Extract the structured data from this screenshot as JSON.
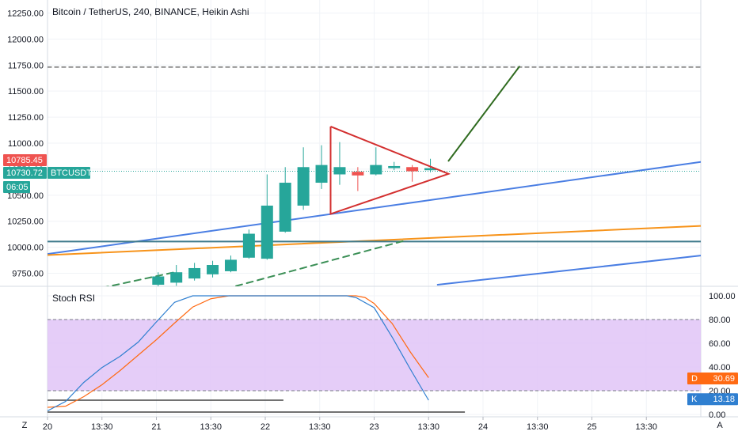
{
  "chart_data": {
    "type": "candlestick",
    "title": "Bitcoin / TetherUS, 240, BINANCE, Heikin Ashi",
    "price_axis": {
      "ticks": [
        9750,
        10000,
        10250,
        10500,
        10750,
        11000,
        11250,
        11500,
        11750,
        12000,
        12250
      ],
      "tick_labels": [
        "9750.00",
        "10000.00",
        "10250.00",
        "10500.00",
        "10750.00",
        "11000.00",
        "11250.00",
        "11500.00",
        "11750.00",
        "12000.00",
        "12250.00"
      ],
      "range": [
        9625,
        12375
      ]
    },
    "time_axis": {
      "labels": [
        "20",
        "13:30",
        "21",
        "13:30",
        "22",
        "13:30",
        "23",
        "13:30",
        "24",
        "13:30",
        "25",
        "13:30"
      ],
      "range": [
        0,
        36
      ]
    },
    "candles": [
      {
        "t": 6.1,
        "open": 9640,
        "close": 9720,
        "high": 9760,
        "low": 9610,
        "dir": "up"
      },
      {
        "t": 7.1,
        "open": 9660,
        "close": 9760,
        "high": 9830,
        "low": 9630,
        "dir": "up"
      },
      {
        "t": 8.1,
        "open": 9700,
        "close": 9800,
        "high": 9850,
        "low": 9680,
        "dir": "up"
      },
      {
        "t": 9.1,
        "open": 9740,
        "close": 9830,
        "high": 9870,
        "low": 9710,
        "dir": "up"
      },
      {
        "t": 10.1,
        "open": 9770,
        "close": 9880,
        "high": 9920,
        "low": 9760,
        "dir": "up"
      },
      {
        "t": 11.1,
        "open": 9900,
        "close": 10130,
        "high": 10170,
        "low": 9890,
        "dir": "up"
      },
      {
        "t": 12.1,
        "open": 9890,
        "close": 10400,
        "high": 10700,
        "low": 9880,
        "dir": "up"
      },
      {
        "t": 13.1,
        "open": 10150,
        "close": 10620,
        "high": 10770,
        "low": 10140,
        "dir": "up"
      },
      {
        "t": 14.1,
        "open": 10400,
        "close": 10770,
        "high": 10960,
        "low": 10360,
        "dir": "up"
      },
      {
        "t": 15.1,
        "open": 10620,
        "close": 10790,
        "high": 10980,
        "low": 10560,
        "dir": "up"
      },
      {
        "t": 16.1,
        "open": 10700,
        "close": 10770,
        "high": 11010,
        "low": 10600,
        "dir": "up"
      },
      {
        "t": 17.1,
        "open": 10725,
        "close": 10690,
        "high": 10770,
        "low": 10540,
        "dir": "down"
      },
      {
        "t": 18.1,
        "open": 10700,
        "close": 10790,
        "high": 10960,
        "low": 10690,
        "dir": "up"
      },
      {
        "t": 19.1,
        "open": 10760,
        "close": 10780,
        "high": 10820,
        "low": 10740,
        "dir": "up"
      },
      {
        "t": 20.1,
        "open": 10770,
        "close": 10730,
        "high": 10790,
        "low": 10630,
        "dir": "down"
      },
      {
        "t": 21.1,
        "open": 10740,
        "close": 10760,
        "high": 10850,
        "low": 10720,
        "dir": "up"
      }
    ],
    "price_labels": [
      {
        "text": "10785.45",
        "price": 10785.45,
        "color": "#ef5350"
      },
      {
        "text": "10730.72",
        "price": 10730.72,
        "color": "#26a69a"
      },
      {
        "text": "BTCUSDT",
        "price": 10730.72,
        "color": "#26a69a"
      },
      {
        "text": "06:05",
        "price": 10630,
        "color": "#26a69a"
      }
    ],
    "drawings": [
      {
        "kind": "line",
        "color": "#4a7ee3",
        "dashed": false,
        "from": [
          0,
          9935
        ],
        "to": [
          36,
          10820
        ]
      },
      {
        "kind": "line",
        "color": "#f7931a",
        "dashed": false,
        "from": [
          0,
          9925
        ],
        "to": [
          36,
          10205
        ]
      },
      {
        "kind": "line",
        "color": "#3f7a8c",
        "dashed": false,
        "from": [
          0,
          10055
        ],
        "to": [
          36,
          10055
        ]
      },
      {
        "kind": "line",
        "color": "#4a7ee3",
        "dashed": false,
        "from": [
          21.5,
          9640
        ],
        "to": [
          36,
          9920
        ]
      },
      {
        "kind": "line",
        "color": "#3b8f56",
        "dashed": true,
        "from": [
          3.0,
          9610
        ],
        "to": [
          7.0,
          9760
        ]
      },
      {
        "kind": "line",
        "color": "#3b8f56",
        "dashed": true,
        "from": [
          9.8,
          9600
        ],
        "to": [
          19.6,
          10060
        ]
      },
      {
        "kind": "line",
        "color": "#555555",
        "dashed": true,
        "from": [
          0,
          11730
        ],
        "to": [
          36,
          11730
        ]
      },
      {
        "kind": "line",
        "color": "#2f6b1f",
        "dashed": false,
        "from": [
          22.1,
          10830
        ],
        "to": [
          26.0,
          11735
        ]
      },
      {
        "kind": "polyline",
        "color": "#d32f2f",
        "dashed": false,
        "points": [
          [
            15.6,
            11160
          ],
          [
            22.1,
            10705
          ],
          [
            15.6,
            10320
          ],
          [
            15.6,
            11160
          ]
        ]
      }
    ],
    "stoch_rsi": {
      "label": "Stoch RSI",
      "ticks": [
        0,
        20,
        40,
        60,
        80,
        100
      ],
      "tick_labels": [
        "0.00",
        "20.00",
        "40.00",
        "60.00",
        "80.00",
        "100.00"
      ],
      "range": [
        -2,
        108
      ],
      "band": [
        20,
        80
      ],
      "band_color": "#e1c4f7",
      "K": {
        "name": "K",
        "value": 13.18,
        "color": "#2f7fd0",
        "x": [
          0.0,
          1.0,
          2.0,
          3.0,
          4.0,
          5.0,
          6.0,
          7.0,
          8.0,
          9.0,
          10.0,
          11.0,
          12.0,
          13.0,
          14.0,
          15.0,
          16.0,
          16.5,
          17.0,
          18.0,
          19.0,
          20.0,
          21.0
        ],
        "y": [
          3.0,
          11.0,
          27.0,
          39.5,
          49.0,
          61.0,
          78.0,
          94.5,
          100.0,
          100.0,
          100.0,
          100.0,
          100.0,
          100.0,
          100.0,
          100.0,
          100.0,
          100.0,
          98.5,
          90.0,
          65.0,
          38.0,
          12.0
        ]
      },
      "D": {
        "name": "D",
        "value": 30.69,
        "color": "#ff6a13",
        "x": [
          0.0,
          1.0,
          2.0,
          3.0,
          4.0,
          5.0,
          6.0,
          7.0,
          8.0,
          9.0,
          10.0,
          11.0,
          12.0,
          13.0,
          14.0,
          15.0,
          16.0,
          17.0,
          17.5,
          18.0,
          19.0,
          20.0,
          21.0
        ],
        "y": [
          6.0,
          7.0,
          15.0,
          25.0,
          37.0,
          50.0,
          63.0,
          77.0,
          90.5,
          97.5,
          100.0,
          100.0,
          100.0,
          100.0,
          100.0,
          100.0,
          100.0,
          100.0,
          98.5,
          93.5,
          76.5,
          52.5,
          31.0
        ]
      },
      "flat_lines": [
        {
          "color": "#444444",
          "from": [
            0,
            12
          ],
          "to": [
            13,
            12
          ]
        },
        {
          "color": "#444444",
          "from": [
            0,
            0
          ],
          "to": [
            23,
            0
          ]
        }
      ]
    }
  },
  "ui": {
    "z_button": "Z",
    "auto_button": "A"
  }
}
